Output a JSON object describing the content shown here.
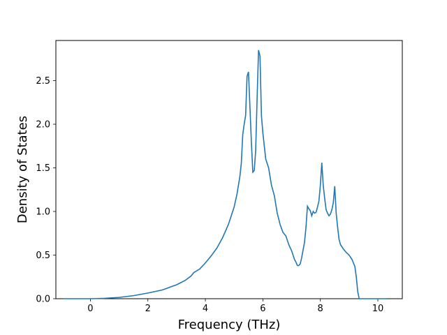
{
  "chart_data": {
    "type": "line",
    "title": "",
    "xlabel": "Frequency (THz)",
    "ylabel": "Density of States",
    "xlim": [
      -1.2,
      10.85
    ],
    "ylim": [
      0,
      2.96
    ],
    "xticks": [
      0,
      2,
      4,
      6,
      8,
      10
    ],
    "xtick_labels": [
      "0",
      "2",
      "4",
      "6",
      "8",
      "10"
    ],
    "yticks": [
      0.0,
      0.5,
      1.0,
      1.5,
      2.0,
      2.5
    ],
    "ytick_labels": [
      "0.0",
      "0.5",
      "1.0",
      "1.5",
      "2.0",
      "2.5"
    ],
    "grid": false,
    "series": [
      {
        "color": "#1f77b4",
        "x": [
          -0.95,
          -0.5,
          0.0,
          0.5,
          1.0,
          1.5,
          2.0,
          2.5,
          3.0,
          3.3,
          3.5,
          3.6,
          3.8,
          4.0,
          4.2,
          4.4,
          4.6,
          4.8,
          5.0,
          5.1,
          5.2,
          5.25,
          5.3,
          5.35,
          5.4,
          5.45,
          5.5,
          5.6,
          5.65,
          5.7,
          5.75,
          5.8,
          5.85,
          5.9,
          5.95,
          6.0,
          6.1,
          6.2,
          6.3,
          6.4,
          6.5,
          6.6,
          6.7,
          6.8,
          6.9,
          7.0,
          7.05,
          7.1,
          7.15,
          7.2,
          7.25,
          7.3,
          7.35,
          7.4,
          7.45,
          7.5,
          7.55,
          7.6,
          7.65,
          7.7,
          7.75,
          7.8,
          7.85,
          7.9,
          7.95,
          8.0,
          8.05,
          8.1,
          8.15,
          8.2,
          8.25,
          8.3,
          8.35,
          8.4,
          8.45,
          8.5,
          8.55,
          8.6,
          8.65,
          8.7,
          8.8,
          8.9,
          9.0,
          9.1,
          9.2,
          9.25,
          9.3,
          9.35,
          9.4,
          9.5,
          10.0,
          10.3
        ],
        "y": [
          0.0,
          0.0,
          0.0,
          0.005,
          0.015,
          0.035,
          0.065,
          0.1,
          0.16,
          0.21,
          0.26,
          0.3,
          0.34,
          0.41,
          0.49,
          0.58,
          0.7,
          0.85,
          1.05,
          1.2,
          1.4,
          1.55,
          1.88,
          2.0,
          2.1,
          2.55,
          2.6,
          1.8,
          1.45,
          1.47,
          1.7,
          2.3,
          2.85,
          2.78,
          2.1,
          1.9,
          1.6,
          1.5,
          1.3,
          1.18,
          0.98,
          0.85,
          0.76,
          0.72,
          0.62,
          0.55,
          0.5,
          0.45,
          0.42,
          0.38,
          0.38,
          0.4,
          0.47,
          0.56,
          0.65,
          0.82,
          1.06,
          1.03,
          1.01,
          0.95,
          1.0,
          0.98,
          0.99,
          1.05,
          1.12,
          1.3,
          1.56,
          1.3,
          1.15,
          1.02,
          0.98,
          0.95,
          0.97,
          1.02,
          1.1,
          1.29,
          0.98,
          0.82,
          0.68,
          0.62,
          0.57,
          0.53,
          0.5,
          0.45,
          0.37,
          0.25,
          0.08,
          0.0,
          0.0,
          0.0,
          0.0,
          0.0
        ]
      }
    ]
  }
}
